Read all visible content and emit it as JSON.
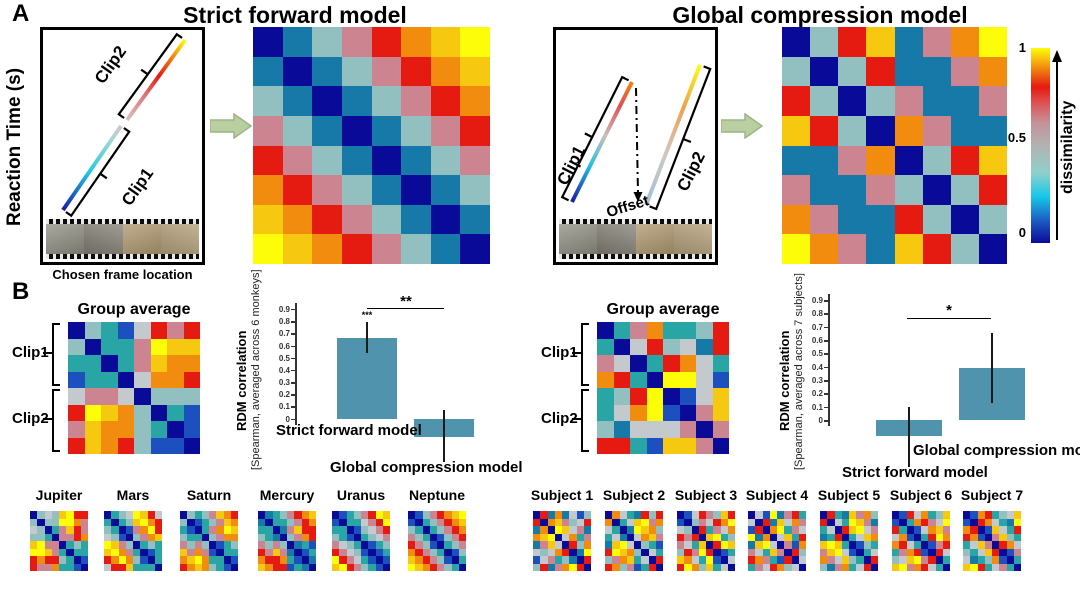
{
  "palette": {
    "N": "#0a0a99",
    "B": "#1b50be",
    "C": "#1679a8",
    "T": "#2aa5a5",
    "L": "#92c0c0",
    "A": "#c3c9cd",
    "P": "#cc8590",
    "R": "#e51a10",
    "O": "#f28c0f",
    "G": "#f6c80f",
    "Y": "#fdfd0a"
  },
  "panelA": {
    "label": "A",
    "left": {
      "title": "Strict forward model",
      "y_axis_label": "Reaction Time (s)",
      "clip1_label": "Clip1",
      "clip2_label": "Clip2",
      "caption": "Chosen frame location"
    },
    "right": {
      "title": "Global compression  model",
      "clip1_label": "Clip1",
      "clip2_label": "Clip2",
      "offset_label": "Offset"
    },
    "colorbar": {
      "tick_top": "1",
      "tick_mid": "0.5",
      "tick_bottom": "0",
      "label": "dissimilarity"
    }
  },
  "matrices": {
    "strict": [
      "NCLPROGY",
      "CNCLPROG",
      "LCNCLPRO",
      "PLCNCLPR",
      "RPLCNCLP",
      "ORPLCNCL",
      "GORPLCNC",
      "YGORPLCN"
    ],
    "global": [
      "NLRGCPOY",
      "LNLRCCPO",
      "RLNLPCCP",
      "GRLNOPCC",
      "CCPONLRG",
      "PCCPLNLR",
      "OPCCRLNL",
      "YOPCGRLN"
    ],
    "monkey_group": [
      "NLTBARPR",
      "LNTTPYGG",
      "TTNTPGOO",
      "BTTNAOOR",
      "APPANLLL",
      "RYGOLNTB",
      "PGOOLTNB",
      "RGORLBBN"
    ],
    "subject_group": [
      "NTPOTTLR",
      "TNARLACR",
      "PANTROAT",
      "ORTNYYAB",
      "TLRYNBAG",
      "TAOYBNPG",
      "LCAAAPNP",
      "RRTBGGPN"
    ]
  },
  "panelB": {
    "label": "B",
    "monkeys": {
      "group_title": "Group average",
      "clip1_label": "Clip1",
      "clip2_label": "Clip2",
      "bar1_annotation": "***",
      "individuals": [
        {
          "name": "Jupiter",
          "grid": [
            "NLALGYRR",
            "LNLLYYOP",
            "ALNTPGRP",
            "LLTNPPRO",
            "GYPPNTLT",
            "YYGPTNTT",
            "RORRLTNB",
            "RPPOTTBN"
          ]
        },
        {
          "name": "Mars",
          "grid": [
            "NTLAYGRA",
            "TNTLGYOR",
            "LTNBPOYR",
            "ALBNLPOG",
            "YGPLNTLT",
            "GYOPTNBT",
            "ROYOLBNT",
            "ARRGTTTN"
          ]
        },
        {
          "name": "Saturn",
          "grid": [
            "NLTLPGOR",
            "LNBTLPGO",
            "TBNTPOYG",
            "LTTNLPOO",
            "PLPLNBTL",
            "GPOPBNTT",
            "OGYOTTNB",
            "ROGOLTBN"
          ]
        },
        {
          "name": "Mercury",
          "grid": [
            "NCTLPROG",
            "CNTTLPRO",
            "TTNCPGRR",
            "LTCNLPOR",
            "PLPLNCTB",
            "RPGPCNBT",
            "ORROTBNC",
            "GORRBTCN"
          ]
        },
        {
          "name": "Uranus",
          "grid": [
            "NBTLPRYG",
            "BNTTAPRY",
            "TTNBLAPR",
            "LTBNTLAP",
            "PALTNBTL",
            "RPALBNBT",
            "YRPATBNB",
            "GYRPLTBN"
          ]
        },
        {
          "name": "Neptune",
          "grid": [
            "NBLPROGY",
            "BNTLPROG",
            "LTNTLPRO",
            "PLTNBLPR",
            "RPLBNTLP",
            "ORPLTNBL",
            "GORPLBNT",
            "YGORPLTN"
          ]
        }
      ]
    },
    "subjects": {
      "group_title": "Group average",
      "clip1_label": "Clip1",
      "clip2_label": "Clip2",
      "individuals": [
        {
          "name": "Subject 1",
          "grid": [
            "NRCOCABL",
            "RNOGPLAR",
            "CONYGAPC",
            "OGYNAOTP",
            "CPGANRLO",
            "ALAORNCY",
            "BAPTLCNR",
            "LRCPOYRN"
          ]
        },
        {
          "name": "Subject 2",
          "grid": [
            "NOATCRLR",
            "ONTAGYPO",
            "ATNCYGOL",
            "TACNAOGP",
            "CGYANLTB",
            "RYGOLNAT",
            "LPOGTANR",
            "ROLPBTRN"
          ]
        },
        {
          "name": "Subject 3",
          "grid": [
            "NBARPLGR",
            "BNLPAROY",
            "ALNRTPAO",
            "RPRNGYTL",
            "PATGNRYG",
            "LRPYRNBT",
            "GOATYBNA",
            "RYOLGTAN"
          ]
        },
        {
          "name": "Subject 4",
          "grid": [
            "NABYCPRT",
            "ANRCGAOP",
            "BRNOYTPA",
            "YCONAGTR",
            "CGYANPBO",
            "PATGPNRL",
            "ROPTBRNA",
            "TPAROLAN"
          ]
        },
        {
          "name": "Subject 5",
          "grid": [
            "NRTCGPOL",
            "RNATYGPC",
            "TANRGYAP",
            "CTRNTAGO",
            "GYGTNBLT",
            "PGYABNTA",
            "OPAGLTNR",
            "LCPOTARN"
          ]
        },
        {
          "name": "Subject 6",
          "grid": [
            "NBRAOTLG",
            "BNTORPAY",
            "RTNBAOGP",
            "AOBNTRYO",
            "ORATNBPR",
            "TPORBNRA",
            "LAGYPRNT",
            "GYPORATN"
          ]
        },
        {
          "name": "Subject 7",
          "grid": [
            "NBORTLAG",
            "BNROATCY",
            "ORNBGATR",
            "ROBNPGLT",
            "TAGPNROA",
            "LTAGRNBP",
            "ACTLOBNT",
            "GYRTAPTN"
          ]
        }
      ]
    }
  },
  "chart_data": [
    {
      "type": "bar",
      "group": "monkeys",
      "categories": [
        "Strict forward model",
        "Global compression  model"
      ],
      "values": [
        0.66,
        -0.15
      ],
      "errors_low": [
        0.54,
        -0.36
      ],
      "errors_high": [
        0.79,
        0.07
      ],
      "significance": "**",
      "bar1_annotation": "***",
      "ylabel": "RDM correlation",
      "ylabel_sub": "[Spearman, averaged across 6 monkeys]",
      "ylim": [
        -0.4,
        0.9
      ],
      "yticks": [
        "0.9",
        "0.8",
        "0.7",
        "0.6",
        "0.5",
        "0.4",
        "0.3",
        "0.2",
        "0.1",
        "0"
      ],
      "bar_color": "#4f94ac",
      "grid": false,
      "legend": "none"
    },
    {
      "type": "bar",
      "group": "subjects",
      "categories": [
        "Strict forward model",
        "Global compression  model"
      ],
      "values": [
        -0.12,
        0.39
      ],
      "errors_low": [
        -0.35,
        0.13
      ],
      "errors_high": [
        0.1,
        0.65
      ],
      "significance": "*",
      "ylabel": "RDM correlation",
      "ylabel_sub": "[Spearman, averaged across 7 subjects]",
      "ylim": [
        -0.4,
        0.9
      ],
      "yticks": [
        "0.9",
        "0.8",
        "0.7",
        "0.6",
        "0.5",
        "0.4",
        "0.3",
        "0.2",
        "0.1",
        "0"
      ],
      "bar_color": "#4f94ac",
      "grid": false,
      "legend": "none"
    }
  ]
}
